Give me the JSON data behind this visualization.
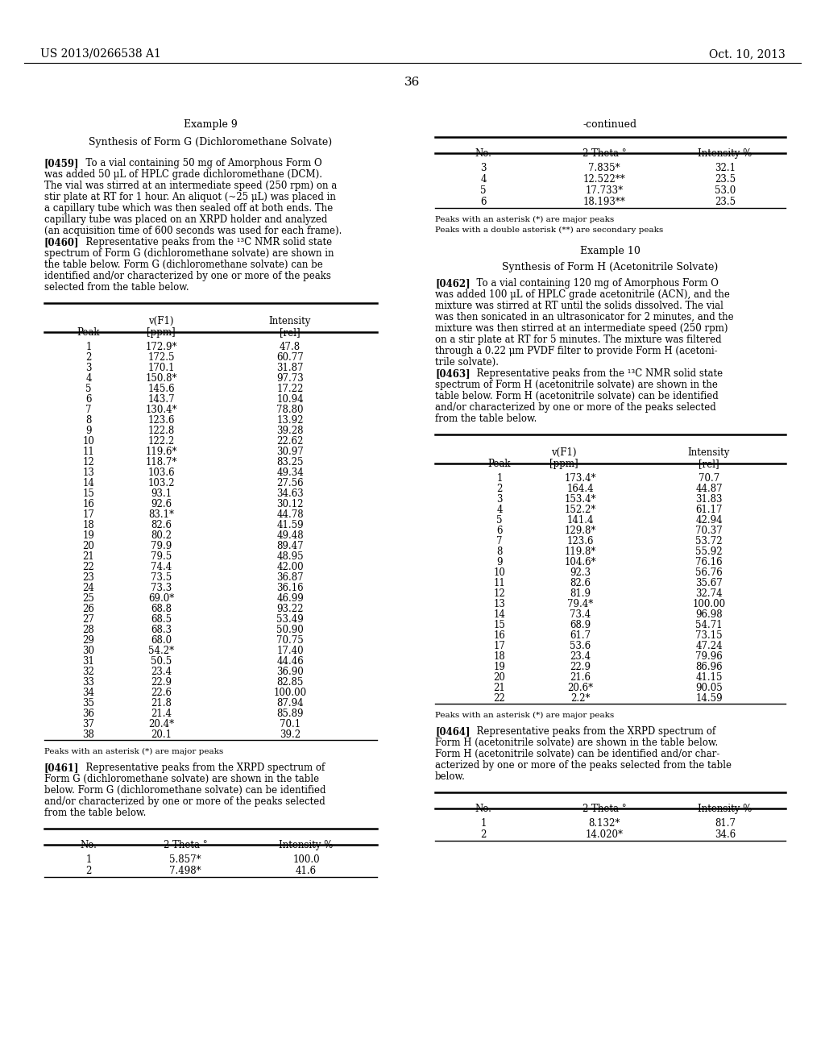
{
  "page_number": "36",
  "patent_number": "US 2013/0266538 A1",
  "patent_date": "Oct. 10, 2013",
  "background_color": "#ffffff",
  "left_column": {
    "example_title": "Example 9",
    "synthesis_title": "Synthesis of Form G (Dichloromethane Solvate)",
    "table1_data": [
      [
        "1",
        "172.9*",
        "47.8"
      ],
      [
        "2",
        "172.5",
        "60.77"
      ],
      [
        "3",
        "170.1",
        "31.87"
      ],
      [
        "4",
        "150.8*",
        "97.73"
      ],
      [
        "5",
        "145.6",
        "17.22"
      ],
      [
        "6",
        "143.7",
        "10.94"
      ],
      [
        "7",
        "130.4*",
        "78.80"
      ],
      [
        "8",
        "123.6",
        "13.92"
      ],
      [
        "9",
        "122.8",
        "39.28"
      ],
      [
        "10",
        "122.2",
        "22.62"
      ],
      [
        "11",
        "119.6*",
        "30.97"
      ],
      [
        "12",
        "118.7*",
        "83.25"
      ],
      [
        "13",
        "103.6",
        "49.34"
      ],
      [
        "14",
        "103.2",
        "27.56"
      ],
      [
        "15",
        "93.1",
        "34.63"
      ],
      [
        "16",
        "92.6",
        "30.12"
      ],
      [
        "17",
        "83.1*",
        "44.78"
      ],
      [
        "18",
        "82.6",
        "41.59"
      ],
      [
        "19",
        "80.2",
        "49.48"
      ],
      [
        "20",
        "79.9",
        "89.47"
      ],
      [
        "21",
        "79.5",
        "48.95"
      ],
      [
        "22",
        "74.4",
        "42.00"
      ],
      [
        "23",
        "73.5",
        "36.87"
      ],
      [
        "24",
        "73.3",
        "36.16"
      ],
      [
        "25",
        "69.0*",
        "46.99"
      ],
      [
        "26",
        "68.8",
        "93.22"
      ],
      [
        "27",
        "68.5",
        "53.49"
      ],
      [
        "28",
        "68.3",
        "50.90"
      ],
      [
        "29",
        "68.0",
        "70.75"
      ],
      [
        "30",
        "54.2*",
        "17.40"
      ],
      [
        "31",
        "50.5",
        "44.46"
      ],
      [
        "32",
        "23.4",
        "36.90"
      ],
      [
        "33",
        "22.9",
        "82.85"
      ],
      [
        "34",
        "22.6",
        "100.00"
      ],
      [
        "35",
        "21.8",
        "87.94"
      ],
      [
        "36",
        "21.4",
        "85.89"
      ],
      [
        "37",
        "20.4*",
        "70.1"
      ],
      [
        "38",
        "20.1",
        "39.2"
      ]
    ],
    "footnote1": "Peaks with an asterisk (*) are major peaks",
    "table2_data": [
      [
        "1",
        "5.857*",
        "100.0"
      ],
      [
        "2",
        "7.498*",
        "41.6"
      ]
    ]
  },
  "right_column": {
    "continued_label": "-continued",
    "table_continued_data": [
      [
        "3",
        "7.835*",
        "32.1"
      ],
      [
        "4",
        "12.522**",
        "23.5"
      ],
      [
        "5",
        "17.733*",
        "53.0"
      ],
      [
        "6",
        "18.193**",
        "23.5"
      ]
    ],
    "footnote_cont1": "Peaks with an asterisk (*) are major peaks",
    "footnote_cont2": "Peaks with a double asterisk (**) are secondary peaks",
    "example10_title": "Example 10",
    "synthesis10_title": "Synthesis of Form H (Acetonitrile Solvate)",
    "table3_data": [
      [
        "1",
        "173.4*",
        "70.7"
      ],
      [
        "2",
        "164.4",
        "44.87"
      ],
      [
        "3",
        "153.4*",
        "31.83"
      ],
      [
        "4",
        "152.2*",
        "61.17"
      ],
      [
        "5",
        "141.4",
        "42.94"
      ],
      [
        "6",
        "129.8*",
        "70.37"
      ],
      [
        "7",
        "123.6",
        "53.72"
      ],
      [
        "8",
        "119.8*",
        "55.92"
      ],
      [
        "9",
        "104.6*",
        "76.16"
      ],
      [
        "10",
        "92.3",
        "56.76"
      ],
      [
        "11",
        "82.6",
        "35.67"
      ],
      [
        "12",
        "81.9",
        "32.74"
      ],
      [
        "13",
        "79.4*",
        "100.00"
      ],
      [
        "14",
        "73.4",
        "96.98"
      ],
      [
        "15",
        "68.9",
        "54.71"
      ],
      [
        "16",
        "61.7",
        "73.15"
      ],
      [
        "17",
        "53.6",
        "47.24"
      ],
      [
        "18",
        "23.4",
        "79.96"
      ],
      [
        "19",
        "22.9",
        "86.96"
      ],
      [
        "20",
        "21.6",
        "41.15"
      ],
      [
        "21",
        "20.6*",
        "90.05"
      ],
      [
        "22",
        "2.2*",
        "14.59"
      ]
    ],
    "footnote3": "Peaks with an asterisk (*) are major peaks",
    "table4_data": [
      [
        "1",
        "8.132*",
        "81.7"
      ],
      [
        "2",
        "14.020*",
        "34.6"
      ]
    ]
  }
}
